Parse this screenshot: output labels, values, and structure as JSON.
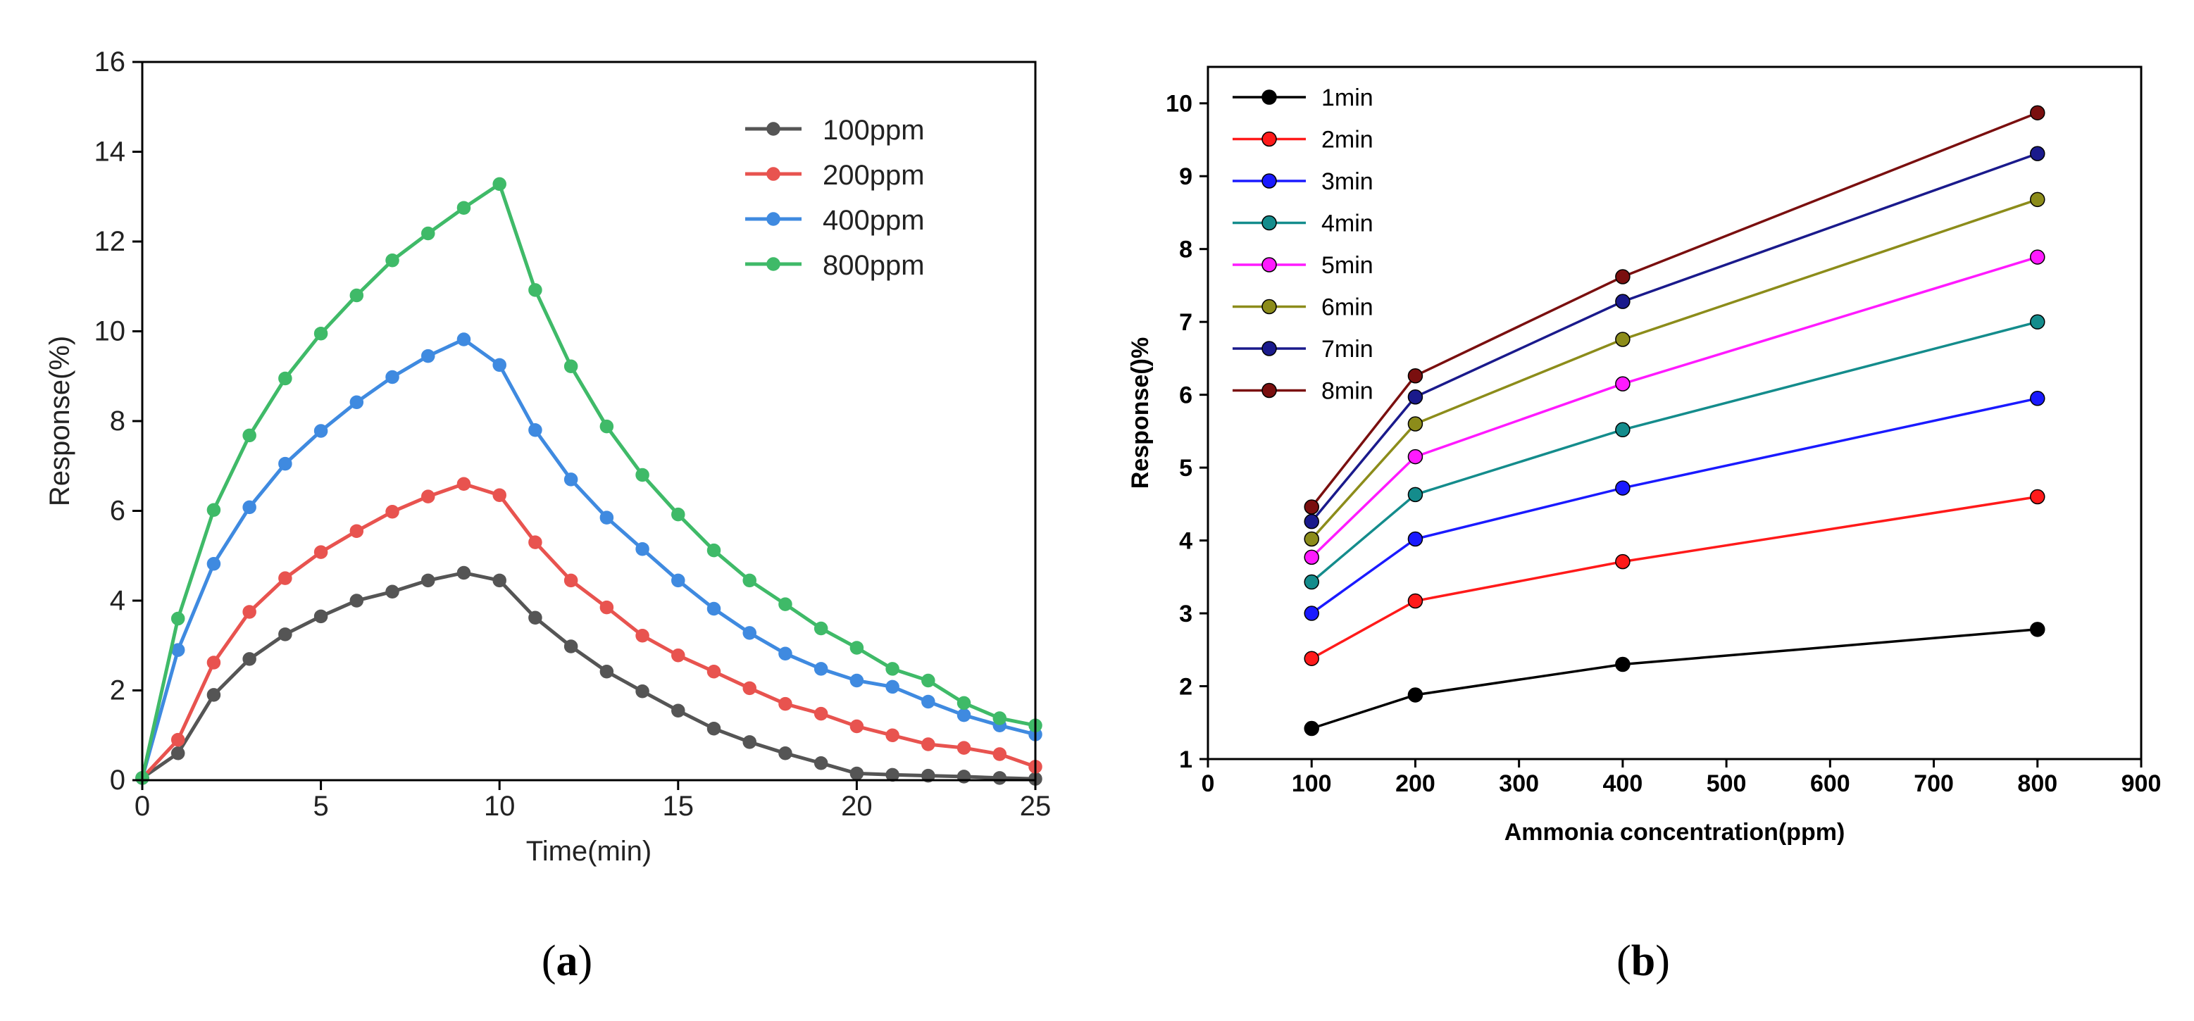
{
  "panels": [
    {
      "label_open": "(",
      "letter": "a",
      "label_close": ")"
    },
    {
      "label_open": "(",
      "letter": "b",
      "label_close": ")"
    }
  ],
  "chart_data": [
    {
      "type": "line",
      "title": "",
      "xlabel": "Time(min)",
      "ylabel": "Response(%)",
      "xlim": [
        0,
        25
      ],
      "ylim": [
        0,
        16
      ],
      "xticks": [
        0,
        5,
        10,
        15,
        20,
        25
      ],
      "yticks": [
        0,
        2,
        4,
        6,
        8,
        10,
        12,
        14,
        16
      ],
      "grid": false,
      "legend_position": "top-right",
      "x": [
        0,
        1,
        2,
        3,
        4,
        5,
        6,
        7,
        8,
        9,
        10,
        11,
        12,
        13,
        14,
        15,
        16,
        17,
        18,
        19,
        20,
        21,
        22,
        23,
        24,
        25
      ],
      "series": [
        {
          "name": "100ppm",
          "color": "#555555",
          "values": [
            0.05,
            0.6,
            1.9,
            2.7,
            3.25,
            3.65,
            4.0,
            4.2,
            4.45,
            4.62,
            4.45,
            3.62,
            2.98,
            2.42,
            1.98,
            1.55,
            1.15,
            0.85,
            0.6,
            0.38,
            0.15,
            0.12,
            0.1,
            0.08,
            0.05,
            0.03
          ]
        },
        {
          "name": "200ppm",
          "color": "#e8534f",
          "values": [
            0.05,
            0.9,
            2.62,
            3.75,
            4.5,
            5.08,
            5.55,
            5.98,
            6.32,
            6.6,
            6.35,
            5.3,
            4.45,
            3.85,
            3.22,
            2.78,
            2.42,
            2.05,
            1.7,
            1.48,
            1.2,
            1.0,
            0.8,
            0.72,
            0.58,
            0.3
          ]
        },
        {
          "name": "400ppm",
          "color": "#3f8ae0",
          "values": [
            0.05,
            2.9,
            4.82,
            6.08,
            7.05,
            7.78,
            8.42,
            8.98,
            9.45,
            9.82,
            9.25,
            7.8,
            6.7,
            5.85,
            5.15,
            4.45,
            3.82,
            3.28,
            2.82,
            2.48,
            2.22,
            2.08,
            1.75,
            1.45,
            1.22,
            1.02
          ]
        },
        {
          "name": "800ppm",
          "color": "#3fba68",
          "values": [
            0.05,
            3.6,
            6.02,
            7.68,
            8.95,
            9.95,
            10.8,
            11.58,
            12.18,
            12.75,
            13.28,
            10.92,
            9.22,
            7.88,
            6.8,
            5.92,
            5.12,
            4.45,
            3.92,
            3.38,
            2.95,
            2.48,
            2.22,
            1.72,
            1.38,
            1.22
          ]
        }
      ]
    },
    {
      "type": "line",
      "title": "",
      "xlabel": "Ammonia concentration(ppm)",
      "ylabel": "Response()%",
      "xlim": [
        0,
        900
      ],
      "ylim": [
        1,
        10.5
      ],
      "xticks": [
        0,
        100,
        200,
        300,
        400,
        500,
        600,
        700,
        800,
        900
      ],
      "yticks": [
        1,
        2,
        3,
        4,
        5,
        6,
        7,
        8,
        9,
        10
      ],
      "grid": false,
      "legend_position": "top-left",
      "x": [
        100,
        200,
        400,
        800
      ],
      "series": [
        {
          "name": "1min",
          "color": "#000000",
          "values": [
            1.42,
            1.88,
            2.3,
            2.78
          ]
        },
        {
          "name": "2min",
          "color": "#ff1a1a",
          "values": [
            2.38,
            3.17,
            3.71,
            4.6
          ]
        },
        {
          "name": "3min",
          "color": "#1a1aff",
          "values": [
            3.0,
            4.02,
            4.72,
            5.95
          ]
        },
        {
          "name": "4min",
          "color": "#148c8c",
          "values": [
            3.43,
            4.63,
            5.52,
            7.0
          ]
        },
        {
          "name": "5min",
          "color": "#ff1aff",
          "values": [
            3.77,
            5.15,
            6.15,
            7.89
          ]
        },
        {
          "name": "6min",
          "color": "#8c8c1a",
          "values": [
            4.02,
            5.6,
            6.76,
            8.68
          ]
        },
        {
          "name": "7min",
          "color": "#1a1a8c",
          "values": [
            4.26,
            5.97,
            7.28,
            9.31
          ]
        },
        {
          "name": "8min",
          "color": "#7a0f0f",
          "values": [
            4.46,
            6.26,
            7.62,
            9.87
          ]
        }
      ]
    }
  ]
}
